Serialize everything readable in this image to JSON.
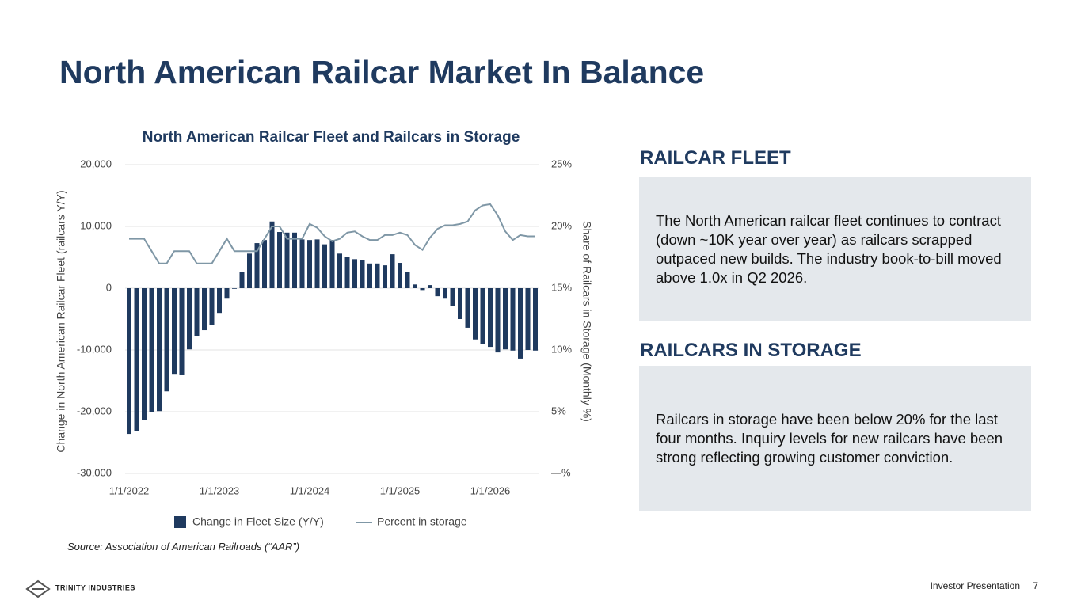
{
  "title": "North American Railcar Market In Balance",
  "source": "Source: Association of American Railroads (“AAR”)",
  "panels": [
    {
      "heading": "RAILCAR FLEET",
      "text": "The North American railcar fleet continues to contract (down ~10K year over year) as railcars scrapped outpaced new builds. The industry book-to-bill moved above 1.0x in Q2 2026."
    },
    {
      "heading": "RAILCARS IN STORAGE",
      "text": "Railcars in storage have been below 20% for the last four months. Inquiry levels for new railcars have been strong reflecting growing customer conviction."
    }
  ],
  "footer": {
    "company": "TRINITY INDUSTRIES",
    "label": "Investor Presentation",
    "page": "7"
  },
  "chart_data": {
    "type": "bar",
    "title": "North American Railcar Fleet and Railcars in Storage",
    "y_label": "Change in North American Railcar Fleet (railcars Y/Y)",
    "y2_label": "Share of Railcars in Storage (Monthly %)",
    "categories": [
      "1/1/2022",
      null,
      null,
      null,
      null,
      null,
      null,
      null,
      null,
      null,
      null,
      null,
      "1/1/2023",
      null,
      null,
      null,
      null,
      null,
      null,
      null,
      null,
      null,
      null,
      null,
      "1/1/2024",
      null,
      null,
      null,
      null,
      null,
      null,
      null,
      null,
      null,
      null,
      null,
      "1/1/2025",
      null,
      null,
      null,
      null,
      null,
      null,
      null,
      null,
      null,
      null,
      null,
      "1/1/2026",
      null,
      null,
      null,
      null,
      null,
      null
    ],
    "ylim": [
      -30000,
      20000
    ],
    "yticks": [
      {
        "value": 20000,
        "label": "20,000"
      },
      {
        "value": 10000,
        "label": "10,000"
      },
      0,
      {
        "value": -10000,
        "label": "-10,000"
      },
      {
        "value": -20000,
        "label": "-20,000"
      },
      {
        "value": -30000,
        "label": "-30,000"
      }
    ],
    "y2lim": [
      0,
      25
    ],
    "y2ticks": [
      {
        "value": 25,
        "label": "25%"
      },
      {
        "value": 20,
        "label": "20%"
      },
      {
        "value": 15,
        "label": "15%"
      },
      {
        "value": 10,
        "label": "10%"
      },
      {
        "value": 5,
        "label": "5%"
      },
      {
        "value": 0,
        "label": "—%"
      }
    ],
    "grid": true,
    "series": [
      {
        "name": "Change in Fleet Size (Y/Y)",
        "type": "bar",
        "color": "#1f3a5f",
        "values": [
          -23600,
          -23200,
          -21300,
          -20000,
          -19900,
          -16700,
          -14000,
          -14100,
          -9900,
          -7800,
          -6800,
          -6000,
          -4000,
          -1700,
          -100,
          2600,
          5600,
          7300,
          7800,
          10800,
          9100,
          9000,
          9000,
          7900,
          7800,
          7900,
          7100,
          7800,
          5600,
          5000,
          4700,
          4600,
          4000,
          4000,
          3700,
          5500,
          4100,
          2600,
          600,
          -300,
          500,
          -1300,
          -1700,
          -2900,
          -5000,
          -6400,
          -8300,
          -9000,
          -9500,
          -10400,
          -9900,
          -10100,
          -11400,
          -10000,
          -10100
        ]
      },
      {
        "name": "Percent in storage",
        "type": "line",
        "axis": "y2",
        "color": "#7f97a6",
        "values": [
          19.0,
          19.0,
          19.0,
          18.0,
          17.0,
          17.0,
          18.0,
          18.0,
          18.0,
          17.0,
          17.0,
          17.0,
          18.0,
          19.0,
          18.0,
          18.0,
          18.0,
          18.0,
          19.0,
          20.0,
          20.0,
          19.0,
          19.0,
          19.0,
          20.2,
          19.9,
          19.2,
          18.8,
          19.0,
          19.5,
          19.6,
          19.2,
          18.9,
          18.9,
          19.3,
          19.3,
          19.5,
          19.3,
          18.5,
          18.1,
          19.1,
          19.8,
          20.1,
          20.1,
          20.2,
          20.4,
          21.3,
          21.7,
          21.8,
          20.9,
          19.6,
          18.9,
          19.3,
          19.2,
          19.2
        ]
      }
    ]
  }
}
